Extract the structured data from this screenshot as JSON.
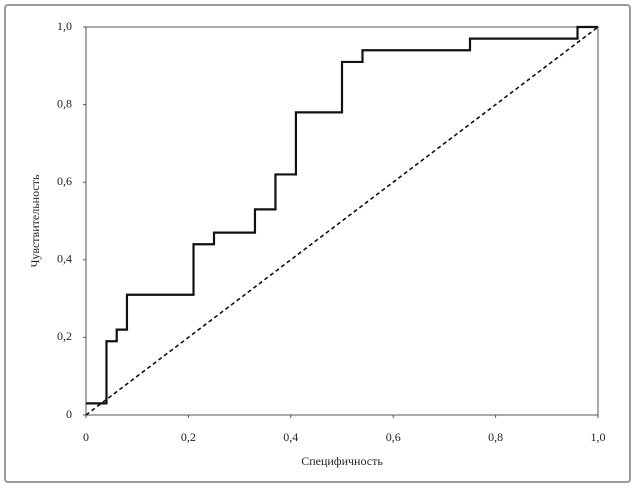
{
  "chart_data": {
    "type": "line",
    "xlabel": "Специфичность",
    "ylabel": "Чувствительность",
    "xlim": [
      0,
      1
    ],
    "ylim": [
      0,
      1
    ],
    "xticks": [
      0,
      {
        "value": 0.2,
        "label": "0,2"
      },
      {
        "value": 0.4,
        "label": "0,4"
      },
      {
        "value": 0.6,
        "label": "0,6"
      },
      {
        "value": 0.8,
        "label": "0,8"
      },
      {
        "value": 1,
        "label": "1,0"
      }
    ],
    "yticks": [
      0,
      {
        "value": 0.2,
        "label": "0,2"
      },
      {
        "value": 0.4,
        "label": "0,4"
      },
      {
        "value": 0.6,
        "label": "0,6"
      },
      {
        "value": 0.8,
        "label": "0,8"
      },
      {
        "value": 1,
        "label": "1,0"
      }
    ],
    "grid": false,
    "series": [
      {
        "color": "#111111",
        "dashed": false,
        "x": [
          0,
          0.04,
          0.04,
          0.06,
          0.06,
          0.08,
          0.08,
          0.21,
          0.21,
          0.25,
          0.25,
          0.33,
          0.33,
          0.37,
          0.37,
          0.41,
          0.41,
          0.5,
          0.5,
          0.54,
          0.54,
          0.75,
          0.75,
          0.96,
          0.96,
          1
        ],
        "values": [
          0.03,
          0.03,
          0.19,
          0.19,
          0.22,
          0.22,
          0.31,
          0.31,
          0.44,
          0.44,
          0.47,
          0.47,
          0.53,
          0.53,
          0.62,
          0.62,
          0.78,
          0.78,
          0.91,
          0.91,
          0.94,
          0.94,
          0.97,
          0.97,
          1,
          1
        ]
      },
      {
        "color": "#111111",
        "dashed": true,
        "x": [
          0,
          1
        ],
        "values": [
          0,
          1
        ]
      }
    ]
  }
}
